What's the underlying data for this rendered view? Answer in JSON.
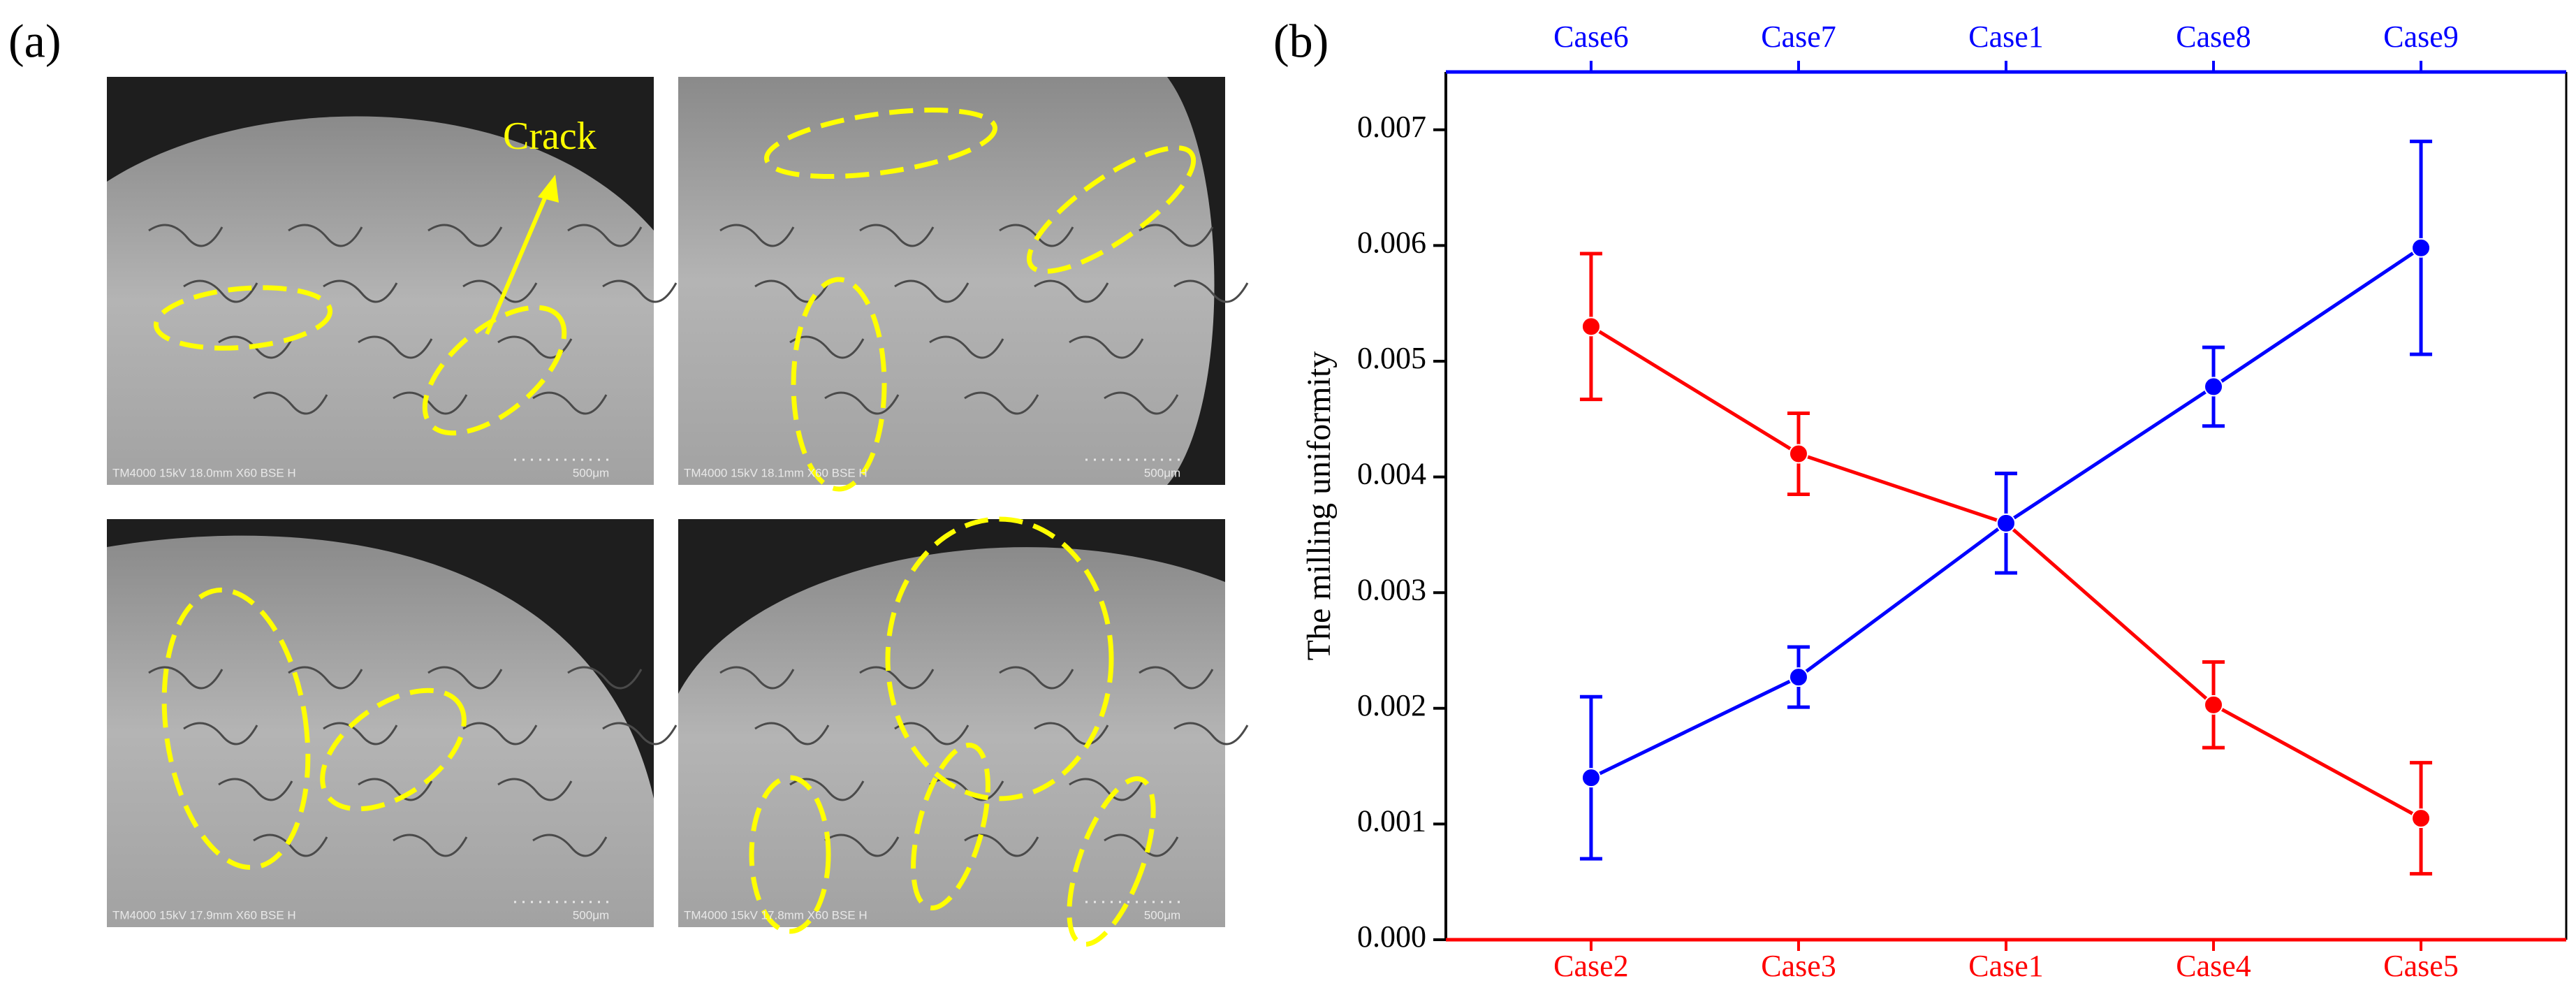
{
  "panel_a": {
    "label": "(a)",
    "annotation": "Crack",
    "images": [
      {
        "info": "TM4000 15kV 18.0mm X60 BSE H",
        "scale": "500μm"
      },
      {
        "info": "TM4000 15kV 18.1mm X60 BSE H",
        "scale": "500μm"
      },
      {
        "info": "TM4000 15kV 17.9mm X60 BSE H",
        "scale": "500μm"
      },
      {
        "info": "TM4000 15kV 17.8mm X60 BSE H",
        "scale": "500μm"
      }
    ]
  },
  "panel_b": {
    "label": "(b)"
  },
  "chart_data": {
    "type": "line",
    "y_label": "The milling uniformity",
    "categories": [
      "Case2",
      "Case3",
      "Case1",
      "Case4",
      "Case5"
    ],
    "x2_categories": [
      "Case6",
      "Case7",
      "Case1",
      "Case8",
      "Case9"
    ],
    "ylim": [
      0,
      0.0075
    ],
    "yticks": [
      {
        "value": 0,
        "label": "0.000"
      },
      {
        "value": 0.001,
        "label": "0.001"
      },
      {
        "value": 0.002,
        "label": "0.002"
      },
      {
        "value": 0.003,
        "label": "0.003"
      },
      {
        "value": 0.004,
        "label": "0.004"
      },
      {
        "value": 0.005,
        "label": "0.005"
      },
      {
        "value": 0.006,
        "label": "0.006"
      },
      {
        "value": 0.007,
        "label": "0.007"
      }
    ],
    "x_axis_color": "#ff0000",
    "x2_axis_color": "#0000ff",
    "series": [
      {
        "color": "#ff0000",
        "axis": "x",
        "values": [
          0.0053,
          0.0042,
          0.0036,
          0.00203,
          0.00105
        ],
        "errors": [
          0.00063,
          0.00035,
          0.00043,
          0.00037,
          0.00048
        ]
      },
      {
        "color": "#0000ff",
        "axis": "x2",
        "values": [
          0.0014,
          0.00227,
          0.0036,
          0.00478,
          0.00598
        ],
        "errors": [
          0.0007,
          0.00026,
          0.00043,
          0.00034,
          0.00092
        ]
      }
    ]
  }
}
